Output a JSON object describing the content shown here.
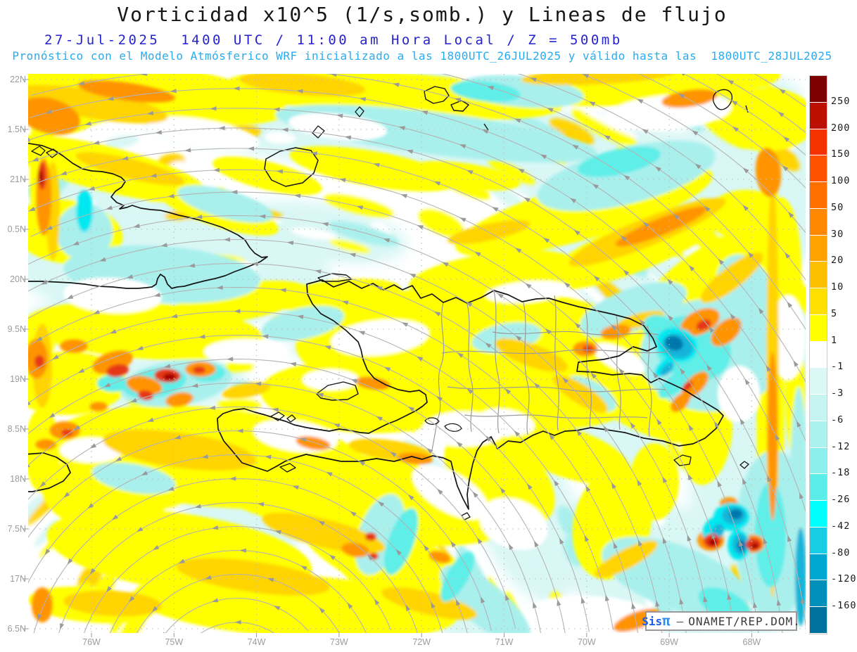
{
  "header": {
    "title": "Vorticidad x10^5 (1/s,somb.) y Lineas de flujo",
    "subtitle_datetime": "27-Jul-2025  1400 UTC / 11:00 am Hora Local / Z = 500mb",
    "subtitle_model": "Pronóstico con el Modelo Atmósferico WRF inicializado a las 1800UTC_26JUL2025 y válido hasta las  1800UTC_28JUL2025",
    "title_color": "#161616",
    "datetime_color": "#2424cf",
    "model_color": "#29abf0"
  },
  "axes": {
    "lat_labels": [
      "22N",
      "1.5N",
      "21N",
      "0.5N",
      "20N",
      "9.5N",
      "19N",
      "8.5N",
      "18N",
      "7.5N",
      "17N",
      "6.5N"
    ],
    "lon_labels": [
      "76W",
      "75W",
      "74W",
      "73W",
      "72W",
      "71W",
      "70W",
      "69W",
      "68W"
    ]
  },
  "colorbar": {
    "labels": [
      "250",
      "200",
      "150",
      "100",
      "50",
      "30",
      "20",
      "10",
      "5",
      "1",
      "-1",
      "-3",
      "-6",
      "-12",
      "-18",
      "-26",
      "-42",
      "-80",
      "-120",
      "-160"
    ],
    "colors": [
      "#7f0000",
      "#bb0f00",
      "#f43200",
      "#ff5200",
      "#ff6f00",
      "#ff8800",
      "#ffa200",
      "#fdc000",
      "#ffdf00",
      "#ffff00",
      "#ffffff",
      "#dcf8f6",
      "#c6f4f1",
      "#abf1ee",
      "#8defec",
      "#5beee8",
      "#00ffff",
      "#17cde6",
      "#00a7d0",
      "#0090ba",
      "#00719c"
    ]
  },
  "watermark": {
    "brand_prefix": "Sis",
    "brand_pi": "π",
    "separator": "–",
    "org": "ONAMET/REP.DOM."
  }
}
